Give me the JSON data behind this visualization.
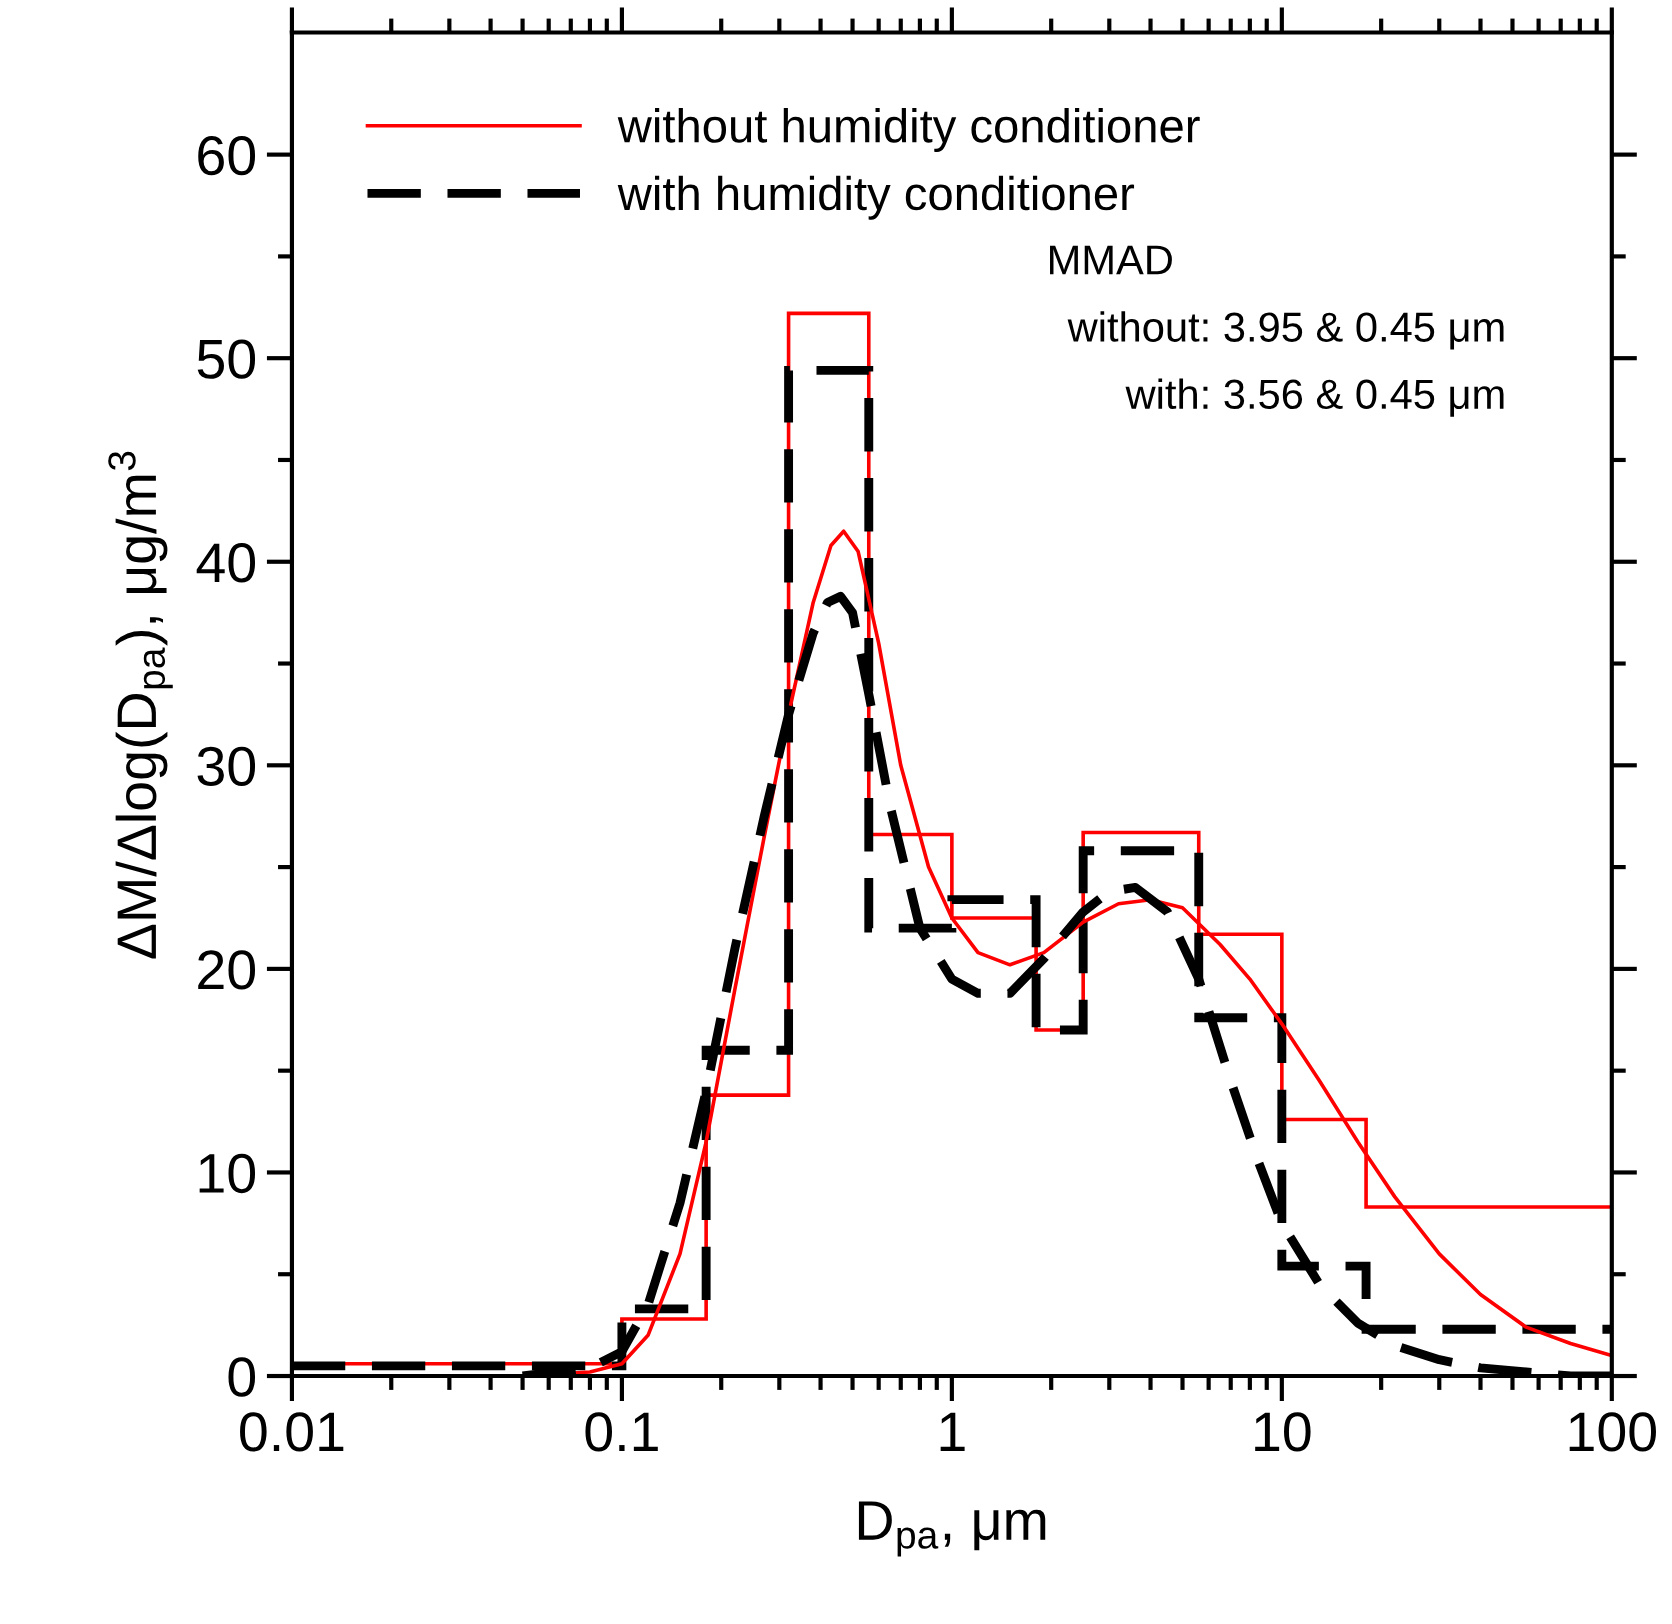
{
  "chart_data": {
    "type": "line",
    "xlabel": "D$_{pa}$, μm",
    "ylabel": "ΔM/Δlog(D$_{pa}$), μg/m$^{3}$",
    "log": "x",
    "xlim": [
      0.01,
      100
    ],
    "xticks": [
      0.01,
      0.1,
      1,
      10,
      100
    ],
    "ylim": [
      0,
      66
    ],
    "yticks": [
      0,
      10,
      20,
      30,
      40,
      50,
      60
    ],
    "grid": false,
    "legend": "top left",
    "series": [
      {
        "name": "without humidity conditioner",
        "type": "histogram",
        "color": "#ff0000",
        "line_style": "solid",
        "bins": [
          0.01,
          0.1,
          0.18,
          0.32,
          0.56,
          1.0,
          1.8,
          2.5,
          5.6,
          10,
          18,
          100
        ],
        "values": [
          0.6,
          2.8,
          13.8,
          52.2,
          26.6,
          22.5,
          17.0,
          26.7,
          21.7,
          12.6,
          8.3
        ]
      },
      {
        "name": "with humidity conditioner",
        "type": "histogram",
        "color": "#000000",
        "line_style": "dashed",
        "bins": [
          0.01,
          0.1,
          0.18,
          0.32,
          0.56,
          1.0,
          1.8,
          2.5,
          5.6,
          10,
          18,
          100
        ],
        "values": [
          0.5,
          3.3,
          16.0,
          49.4,
          22.0,
          23.4,
          17.0,
          25.8,
          17.6,
          5.4,
          2.3
        ]
      },
      {
        "color": "#ff0000",
        "line_style": "solid",
        "x": [
          0.05,
          0.08,
          0.1,
          0.12,
          0.15,
          0.18,
          0.22,
          0.27,
          0.32,
          0.38,
          0.43,
          0.47,
          0.52,
          0.6,
          0.7,
          0.85,
          1.0,
          1.2,
          1.5,
          1.9,
          2.5,
          3.2,
          4.0,
          5.0,
          6.5,
          8.0,
          10,
          13,
          17,
          22,
          30,
          40,
          55,
          75,
          100
        ],
        "values": [
          0.0,
          0.2,
          0.6,
          2.0,
          6.0,
          11.5,
          19.0,
          26.5,
          32.5,
          38.0,
          40.8,
          41.5,
          40.5,
          36.0,
          30.0,
          25.0,
          22.5,
          20.8,
          20.2,
          20.8,
          22.3,
          23.2,
          23.4,
          23.0,
          21.2,
          19.5,
          17.3,
          14.5,
          11.5,
          8.8,
          6.0,
          4.0,
          2.4,
          1.6,
          1.0
        ]
      },
      {
        "color": "#000000",
        "line_style": "dashed",
        "x": [
          0.05,
          0.08,
          0.1,
          0.12,
          0.15,
          0.18,
          0.22,
          0.27,
          0.32,
          0.38,
          0.42,
          0.46,
          0.5,
          0.56,
          0.65,
          0.8,
          1.0,
          1.2,
          1.5,
          1.9,
          2.5,
          3.0,
          3.6,
          4.5,
          5.6,
          7.0,
          8.5,
          10,
          13,
          17,
          22,
          30,
          40,
          55,
          75,
          100
        ],
        "values": [
          0.0,
          0.4,
          1.2,
          3.5,
          8.5,
          14.0,
          21.0,
          27.5,
          32.5,
          36.5,
          38.0,
          38.3,
          37.5,
          33.5,
          28.0,
          22.0,
          19.5,
          18.8,
          18.8,
          20.5,
          22.8,
          23.8,
          24.0,
          22.8,
          19.5,
          14.5,
          10.5,
          7.5,
          4.5,
          2.6,
          1.5,
          0.8,
          0.4,
          0.2,
          0.0,
          0.0
        ]
      }
    ],
    "annotations": [
      "MMAD",
      "without: 3.95 & 0.45 μm",
      "with: 3.56 & 0.45 μm"
    ]
  }
}
